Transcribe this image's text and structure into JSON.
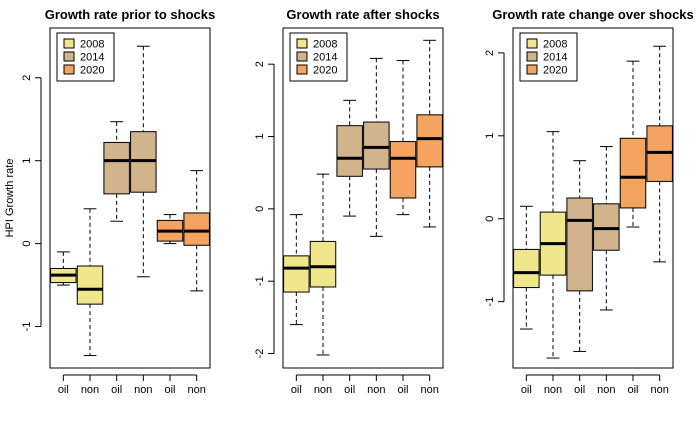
{
  "colors": {
    "2008": "#f0e68c",
    "2014": "#d2b48c",
    "2020": "#f4a460"
  },
  "chart_data": [
    {
      "type": "box",
      "title": "Growth rate prior to shocks",
      "ylabel": "HPI Growth rate",
      "ylim": [
        -1.5,
        2.6
      ],
      "yticks": [
        "-1",
        "0",
        "1",
        "2"
      ],
      "legend": {
        "placement": "top-left",
        "entries": [
          "2008",
          "2014",
          "2020"
        ]
      },
      "categories": [
        "oil",
        "non",
        "oil",
        "non",
        "oil",
        "non"
      ],
      "boxes": [
        {
          "year": "2008",
          "whisker_low": -0.5,
          "q1": -0.47,
          "median": -0.38,
          "q3": -0.3,
          "whisker_high": -0.1
        },
        {
          "year": "2008",
          "whisker_low": -1.35,
          "q1": -0.73,
          "median": -0.55,
          "q3": -0.27,
          "whisker_high": 0.42
        },
        {
          "year": "2014",
          "whisker_low": 0.27,
          "q1": 0.6,
          "median": 1.0,
          "q3": 1.22,
          "whisker_high": 1.47
        },
        {
          "year": "2014",
          "whisker_low": -0.4,
          "q1": 0.62,
          "median": 1.0,
          "q3": 1.35,
          "whisker_high": 2.38
        },
        {
          "year": "2020",
          "whisker_low": 0.0,
          "q1": 0.03,
          "median": 0.15,
          "q3": 0.28,
          "whisker_high": 0.35
        },
        {
          "year": "2020",
          "whisker_low": -0.57,
          "q1": -0.02,
          "median": 0.15,
          "q3": 0.37,
          "whisker_high": 0.88
        }
      ]
    },
    {
      "type": "box",
      "title": "Growth rate after shocks",
      "ylabel": "",
      "ylim": [
        -2.2,
        2.5
      ],
      "yticks": [
        "-2",
        "-1",
        "0",
        "1",
        "2"
      ],
      "legend": {
        "placement": "top-left",
        "entries": [
          "2008",
          "2014",
          "2020"
        ]
      },
      "categories": [
        "oil",
        "non",
        "oil",
        "non",
        "oil",
        "non"
      ],
      "boxes": [
        {
          "year": "2008",
          "whisker_low": -1.6,
          "q1": -1.15,
          "median": -0.82,
          "q3": -0.65,
          "whisker_high": -0.08
        },
        {
          "year": "2008",
          "whisker_low": -2.02,
          "q1": -1.08,
          "median": -0.8,
          "q3": -0.45,
          "whisker_high": 0.48
        },
        {
          "year": "2014",
          "whisker_low": -0.1,
          "q1": 0.45,
          "median": 0.7,
          "q3": 1.15,
          "whisker_high": 1.5
        },
        {
          "year": "2014",
          "whisker_low": -0.38,
          "q1": 0.55,
          "median": 0.85,
          "q3": 1.2,
          "whisker_high": 2.08
        },
        {
          "year": "2020",
          "whisker_low": -0.08,
          "q1": 0.15,
          "median": 0.7,
          "q3": 0.93,
          "whisker_high": 2.05
        },
        {
          "year": "2020",
          "whisker_low": -0.25,
          "q1": 0.58,
          "median": 0.97,
          "q3": 1.3,
          "whisker_high": 2.33
        }
      ]
    },
    {
      "type": "box",
      "title": "Growth rate change over shocks",
      "ylabel": "",
      "ylim": [
        -1.8,
        2.3
      ],
      "yticks": [
        "-1",
        "0",
        "1",
        "2"
      ],
      "legend": {
        "placement": "top-left",
        "entries": [
          "2008",
          "2014",
          "2020"
        ]
      },
      "categories": [
        "oil",
        "non",
        "oil",
        "non",
        "oil",
        "non"
      ],
      "boxes": [
        {
          "year": "2008",
          "whisker_low": -1.33,
          "q1": -0.83,
          "median": -0.65,
          "q3": -0.37,
          "whisker_high": 0.15
        },
        {
          "year": "2008",
          "whisker_low": -1.68,
          "q1": -0.68,
          "median": -0.3,
          "q3": 0.08,
          "whisker_high": 1.05
        },
        {
          "year": "2014",
          "whisker_low": -1.6,
          "q1": -0.87,
          "median": -0.02,
          "q3": 0.25,
          "whisker_high": 0.7
        },
        {
          "year": "2014",
          "whisker_low": -1.1,
          "q1": -0.38,
          "median": -0.12,
          "q3": 0.18,
          "whisker_high": 0.87
        },
        {
          "year": "2020",
          "whisker_low": -0.1,
          "q1": 0.13,
          "median": 0.5,
          "q3": 0.97,
          "whisker_high": 1.9
        },
        {
          "year": "2020",
          "whisker_low": -0.52,
          "q1": 0.45,
          "median": 0.8,
          "q3": 1.12,
          "whisker_high": 2.08
        }
      ]
    }
  ]
}
